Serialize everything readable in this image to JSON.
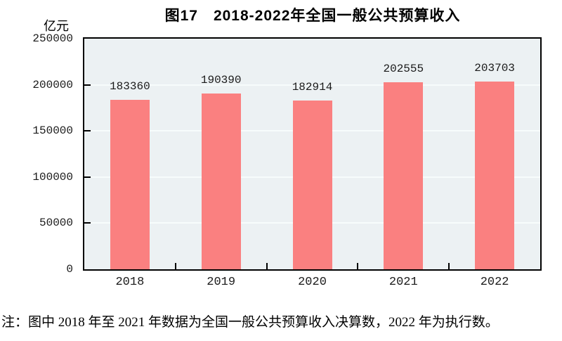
{
  "chart_data": {
    "type": "bar",
    "title": "图17　2018-2022年全国一般公共预算收入",
    "unit_label": "亿元",
    "categories": [
      "2018",
      "2019",
      "2020",
      "2021",
      "2022"
    ],
    "values": [
      183360,
      190390,
      182914,
      202555,
      203703
    ],
    "ylim": [
      0,
      250000
    ],
    "yticks": [
      0,
      50000,
      100000,
      150000,
      200000,
      250000
    ],
    "grid": "horizontal gridlines at each y tick, inward axis tick marks",
    "legend": "none",
    "colors": {
      "bar": "#FA8080",
      "plot_background": "#ECF1F3",
      "gridline": "#F7FCFC",
      "axis": "#000000",
      "text": "#000000",
      "page_background": "#FFFFFF"
    },
    "note": "注：图中 2018 年至 2021 年数据为全国一般公共预算收入决算数，2022 年为执行数。"
  }
}
